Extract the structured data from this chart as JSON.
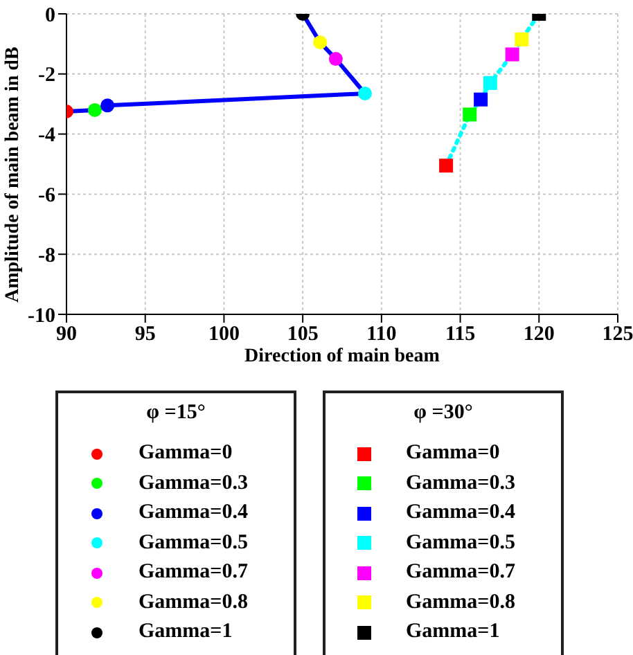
{
  "chart_data": {
    "type": "scatter",
    "xlabel": "Direction of main beam",
    "ylabel": "Amplitude of main beam in dB",
    "xlim": [
      90,
      125
    ],
    "xticks": [
      90,
      95,
      100,
      105,
      110,
      115,
      120,
      125
    ],
    "ylim": [
      -10,
      0
    ],
    "yticks": [
      -10,
      -8,
      -6,
      -4,
      -2,
      0
    ],
    "grid": true,
    "legend": "bottom",
    "annotations": [
      "φ =15°",
      "φ =30°"
    ],
    "series": [
      {
        "type": "line",
        "color": "#0000ff",
        "line_style": "solid",
        "x": [
          90,
          91.8,
          92.6,
          108.95,
          107.1,
          106.1,
          105.0
        ],
        "values": [
          -3.25,
          -3.2,
          -3.05,
          -2.65,
          -1.5,
          -0.95,
          0
        ]
      },
      {
        "type": "line",
        "color": "#00ffff",
        "line_style": "dotted",
        "x": [
          114.1,
          115.6,
          116.3,
          116.9,
          118.3,
          118.9,
          120.0
        ],
        "values": [
          -5.05,
          -3.35,
          -2.85,
          -2.3,
          -1.35,
          -0.85,
          0
        ]
      },
      {
        "name": "Gamma=0",
        "color": "#ff0000",
        "marker": "circle",
        "x": [
          90
        ],
        "values": [
          -3.25
        ]
      },
      {
        "name": "Gamma=0.3",
        "color": "#00ff00",
        "marker": "circle",
        "x": [
          91.8
        ],
        "values": [
          -3.2
        ]
      },
      {
        "name": "Gamma=0.4",
        "color": "#0000ff",
        "marker": "circle",
        "x": [
          92.6
        ],
        "values": [
          -3.05
        ]
      },
      {
        "name": "Gamma=0.5",
        "color": "#00ffff",
        "marker": "circle",
        "x": [
          108.95
        ],
        "values": [
          -2.65
        ]
      },
      {
        "name": "Gamma=0.7",
        "color": "#ff00ff",
        "marker": "circle",
        "x": [
          107.1
        ],
        "values": [
          -1.5
        ]
      },
      {
        "name": "Gamma=0.8",
        "color": "#ffff00",
        "marker": "circle",
        "x": [
          106.1
        ],
        "values": [
          -0.95
        ]
      },
      {
        "name": "Gamma=1",
        "color": "#000000",
        "marker": "circle",
        "x": [
          105.0
        ],
        "values": [
          0
        ]
      },
      {
        "name": "Gamma=0",
        "color": "#ff0000",
        "marker": "square",
        "x": [
          114.1
        ],
        "values": [
          -5.05
        ]
      },
      {
        "name": "Gamma=0.3",
        "color": "#00ff00",
        "marker": "square",
        "x": [
          115.6
        ],
        "values": [
          -3.35
        ]
      },
      {
        "name": "Gamma=0.4",
        "color": "#0000ff",
        "marker": "square",
        "x": [
          116.3
        ],
        "values": [
          -2.85
        ]
      },
      {
        "name": "Gamma=0.5",
        "color": "#00ffff",
        "marker": "square",
        "x": [
          116.9
        ],
        "values": [
          -2.3
        ]
      },
      {
        "name": "Gamma=0.7",
        "color": "#ff00ff",
        "marker": "square",
        "x": [
          118.3
        ],
        "values": [
          -1.35
        ]
      },
      {
        "name": "Gamma=0.8",
        "color": "#ffff00",
        "marker": "square",
        "x": [
          118.9
        ],
        "values": [
          -0.85
        ]
      },
      {
        "name": "Gamma=1",
        "color": "#000000",
        "marker": "square",
        "x": [
          120.0
        ],
        "values": [
          0
        ]
      }
    ]
  }
}
